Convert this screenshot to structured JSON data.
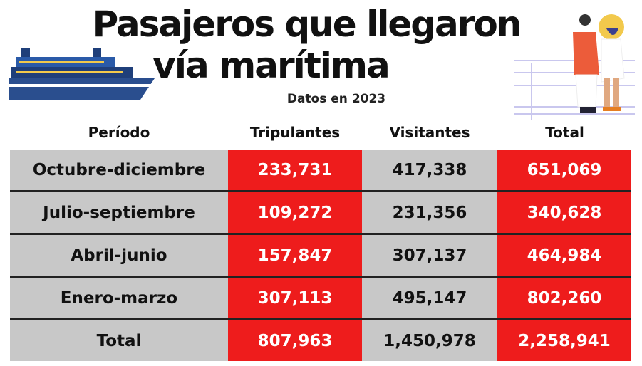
{
  "title_line1": "Pasajeros que llegaron",
  "title_line2": "vía marítima",
  "subtitle": "Datos en 2023",
  "colors": {
    "accent_red": "#ee1c1c",
    "gray_cell": "#c8c8c8"
  },
  "chart_data": {
    "type": "table",
    "columns": [
      "Período",
      "Tripulantes",
      "Visitantes",
      "Total"
    ],
    "rows": [
      [
        "Octubre-diciembre",
        "233,731",
        "417,338",
        "651,069"
      ],
      [
        "Julio-septiembre",
        "109,272",
        "231,356",
        "340,628"
      ],
      [
        "Abril-junio",
        "157,847",
        "307,137",
        "464,984"
      ],
      [
        "Enero-marzo",
        "307,113",
        "495,147",
        "802,260"
      ],
      [
        "Total",
        "807,963",
        "1,450,978",
        "2,258,941"
      ]
    ]
  }
}
